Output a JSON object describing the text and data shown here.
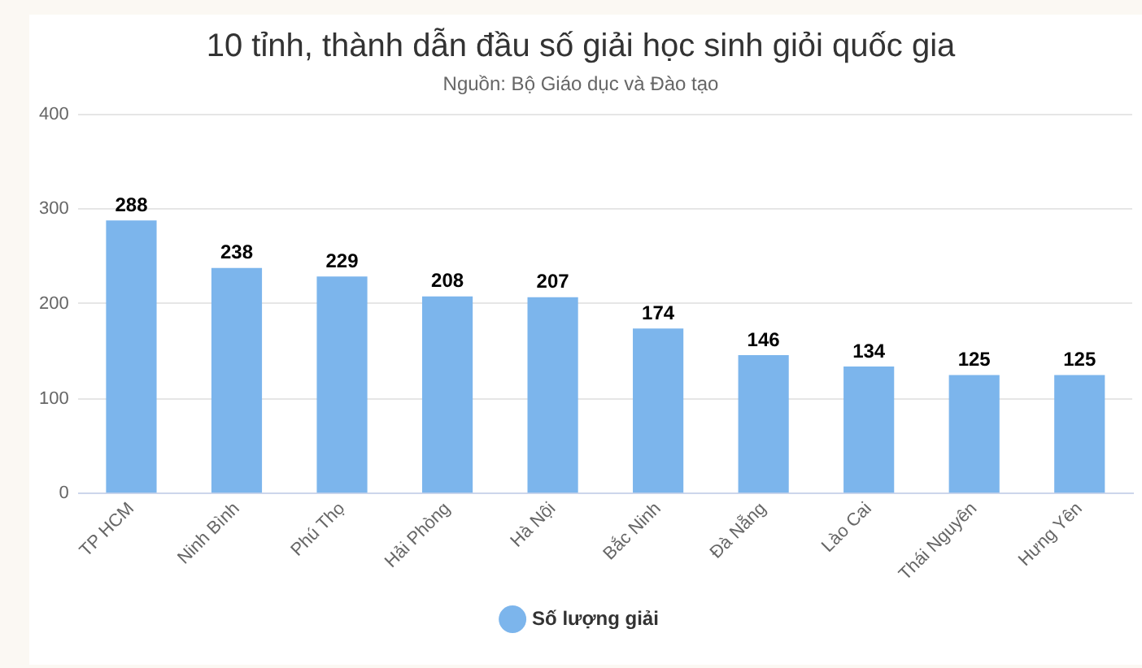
{
  "chart_data": {
    "type": "bar",
    "title": "10 tỉnh, thành dẫn đầu số giải học sinh giỏi quốc gia",
    "subtitle": "Nguồn: Bộ Giáo dục và Đào tạo",
    "categories": [
      "TP HCM",
      "Ninh Bình",
      "Phú Thọ",
      "Hải Phòng",
      "Hà Nội",
      "Bắc Ninh",
      "Đà Nẵng",
      "Lào Cai",
      "Thái Nguyên",
      "Hưng Yên"
    ],
    "series": [
      {
        "name": "Số lượng giải",
        "color": "#7cb5ec",
        "values": [
          288,
          238,
          229,
          208,
          207,
          174,
          146,
          134,
          125,
          125
        ]
      }
    ],
    "ylim": [
      0,
      400
    ],
    "yticks": [
      0,
      100,
      200,
      300,
      400
    ],
    "grid": "y",
    "legend": "bottom",
    "data_labels": true
  }
}
